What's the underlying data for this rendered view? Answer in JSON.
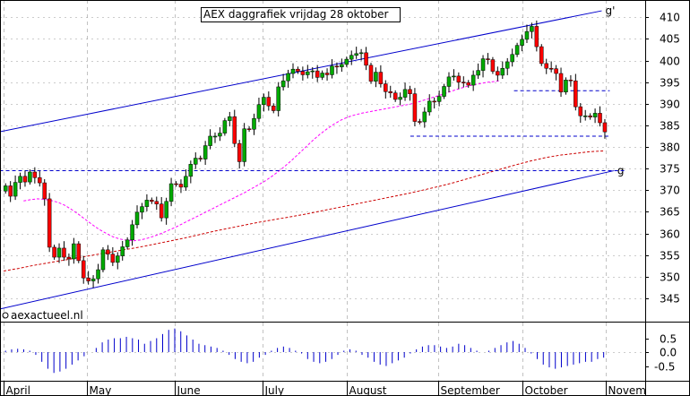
{
  "chart_data": {
    "type": "candlestick",
    "title": "AEX daggrafiek vrijdag 28 oktober",
    "watermark": "aexactueel.nl",
    "price_axis": {
      "ylim": [
        340,
        414
      ],
      "ticks": [
        345,
        350,
        355,
        360,
        365,
        370,
        375,
        380,
        385,
        390,
        395,
        400,
        405,
        410
      ],
      "tick_labels": [
        "345",
        "350",
        "355",
        "360",
        "365",
        "370",
        "375",
        "380",
        "385",
        "390",
        "395",
        "400",
        "405",
        "410"
      ]
    },
    "oscillator_axis": {
      "ylim": [
        -1.0,
        1.0
      ],
      "tick_labels": [
        "0.5",
        "0.0",
        "-0.5"
      ]
    },
    "months": [
      {
        "label": "April",
        "day": 0
      },
      {
        "label": "May",
        "day": 21
      },
      {
        "label": "June",
        "day": 43
      },
      {
        "label": "July",
        "day": 65
      },
      {
        "label": "August",
        "day": 86
      },
      {
        "label": "September",
        "day": 109
      },
      {
        "label": "October",
        "day": 130
      },
      {
        "label": "Novem",
        "day": 151
      }
    ],
    "trend_lines": [
      {
        "label": "g'",
        "x1": -1,
        "y1": 383.5,
        "x2": 150,
        "y2": 411.5,
        "color": "#0000cc"
      },
      {
        "label": "g",
        "x1": -1,
        "y1": 342.5,
        "x2": 153,
        "y2": 374.5,
        "color": "#0000cc"
      }
    ],
    "horizontal_lines": [
      {
        "y": 374.5,
        "x1": -1,
        "x2": 156,
        "color": "#0000cc"
      },
      {
        "y": 382.5,
        "x1": 102,
        "x2": 152,
        "color": "#0000cc"
      },
      {
        "y": 393.0,
        "x1": 128,
        "x2": 152,
        "color": "#0000cc"
      }
    ],
    "series": [
      {
        "name": "",
        "type": "candlestick",
        "close": [
          371.0,
          368.6,
          371.8,
          373.2,
          371.9,
          374.2,
          372.9,
          371.7,
          368.0,
          356.8,
          354.5,
          356.6,
          354.5,
          354.1,
          357.6,
          353.7,
          349.7,
          349.0,
          349.5,
          351.6,
          356.2,
          355.2,
          353.3,
          354.8,
          356.9,
          358.5,
          362.0,
          364.9,
          366.2,
          367.7,
          367.4,
          366.8,
          363.6,
          367.4,
          371.5,
          371.4,
          370.7,
          373.2,
          376.0,
          377.4,
          377.2,
          380.3,
          382.5,
          382.5,
          383.2,
          386.1,
          387.0,
          380.8,
          376.6,
          384.2,
          384.1,
          386.6,
          389.8,
          391.5,
          389.5,
          388.4,
          393.9,
          395.3,
          397.0,
          398.0,
          397.5,
          396.7,
          397.4,
          397.6,
          396.1,
          397.1,
          396.7,
          398.7,
          398.5,
          399.1,
          400.3,
          401.2,
          401.6,
          401.8,
          398.9,
          395.2,
          397.3,
          394.6,
          392.8,
          392.5,
          391.0,
          391.5,
          393.3,
          392.3,
          385.9,
          385.8,
          388.1,
          390.6,
          390.5,
          391.7,
          394.0,
          396.2,
          396.4,
          395.0,
          394.9,
          394.3,
          396.6,
          397.7,
          400.4,
          400.2,
          397.5,
          396.6,
          398.2,
          399.7,
          401.4,
          403.5,
          404.9,
          406.7,
          407.9,
          403.2,
          399.3,
          398.2,
          398.1,
          397.0,
          392.7,
          395.5,
          395.3,
          389.3,
          387.2,
          387.2,
          386.9,
          387.8,
          385.6,
          383.5
        ],
        "ohlc_drawn": true
      },
      {
        "name": "",
        "type": "line",
        "color": "#ff00ff",
        "style": "dashed",
        "values": [
          367.5,
          367.8,
          368.0,
          367.9,
          367.6,
          367.2,
          366.5,
          365.5,
          364.4,
          363.2,
          362.0,
          360.9,
          360.0,
          359.2,
          358.7,
          358.4,
          358.3,
          358.5,
          358.9,
          359.4,
          360.0,
          360.7,
          361.4,
          362.2,
          363.0,
          363.8,
          364.6,
          365.4,
          366.2,
          367.0,
          367.8,
          368.6,
          369.4,
          370.3,
          371.2,
          372.1,
          373.2,
          374.4,
          375.7,
          377.1,
          378.6,
          380.1,
          381.6,
          383.0,
          384.2,
          385.3,
          386.2,
          386.9,
          387.4,
          387.8,
          388.1,
          388.4,
          388.7,
          389.0,
          389.3,
          389.6,
          389.9,
          390.3,
          390.8,
          391.3,
          391.8,
          392.3,
          392.9,
          393.4,
          393.9,
          394.3,
          394.6,
          394.9,
          395.1,
          395.3
        ]
      },
      {
        "name": "",
        "type": "line",
        "color": "#cc0000",
        "style": "dashed",
        "values": [
          351.3,
          351.9,
          352.6,
          353.2,
          353.8,
          354.4,
          355.0,
          355.6,
          356.2,
          356.8,
          357.5,
          358.2,
          358.9,
          359.7,
          360.5,
          361.2,
          361.9,
          362.6,
          363.2,
          363.8,
          364.4,
          365.1,
          365.8,
          366.5,
          367.2,
          367.9,
          368.6,
          369.3,
          370.1,
          370.9,
          371.8,
          372.8,
          373.8,
          374.8,
          375.8,
          376.7,
          377.5,
          378.1,
          378.5,
          378.9,
          379.1
        ]
      },
      {
        "name": "",
        "type": "histogram",
        "color": "#0000cc",
        "values": [
          0.05,
          0.1,
          0.12,
          0.1,
          0.05,
          -0.1,
          -0.35,
          -0.6,
          -0.75,
          -0.7,
          -0.6,
          -0.45,
          -0.3,
          -0.15,
          0.0,
          0.15,
          0.35,
          0.45,
          0.5,
          0.5,
          0.55,
          0.5,
          0.45,
          0.3,
          0.4,
          0.5,
          0.65,
          0.8,
          0.85,
          0.75,
          0.6,
          0.45,
          0.3,
          0.25,
          0.2,
          0.15,
          0.05,
          -0.1,
          -0.25,
          -0.35,
          -0.4,
          -0.35,
          -0.2,
          -0.1,
          0.05,
          0.15,
          0.2,
          0.15,
          0.05,
          -0.05,
          -0.25,
          -0.35,
          -0.4,
          -0.35,
          -0.25,
          -0.1,
          0.05,
          0.1,
          0.05,
          -0.1,
          -0.2,
          -0.35,
          -0.45,
          -0.5,
          -0.4,
          -0.3,
          -0.2,
          -0.05,
          0.1,
          0.2,
          0.25,
          0.25,
          0.2,
          0.15,
          0.2,
          0.3,
          0.25,
          0.15,
          0.05,
          0.0,
          0.05,
          0.15,
          0.25,
          0.35,
          0.4,
          0.3,
          0.15,
          -0.05,
          -0.25,
          -0.45,
          -0.55,
          -0.6,
          -0.55,
          -0.5,
          -0.45,
          -0.4,
          -0.35,
          -0.35,
          -0.25,
          -0.2
        ]
      }
    ],
    "colors": {
      "up": "#00aa00",
      "down": "#ff0000",
      "wick": "#000000",
      "grid": "#999999",
      "trend": "#0000cc"
    }
  }
}
